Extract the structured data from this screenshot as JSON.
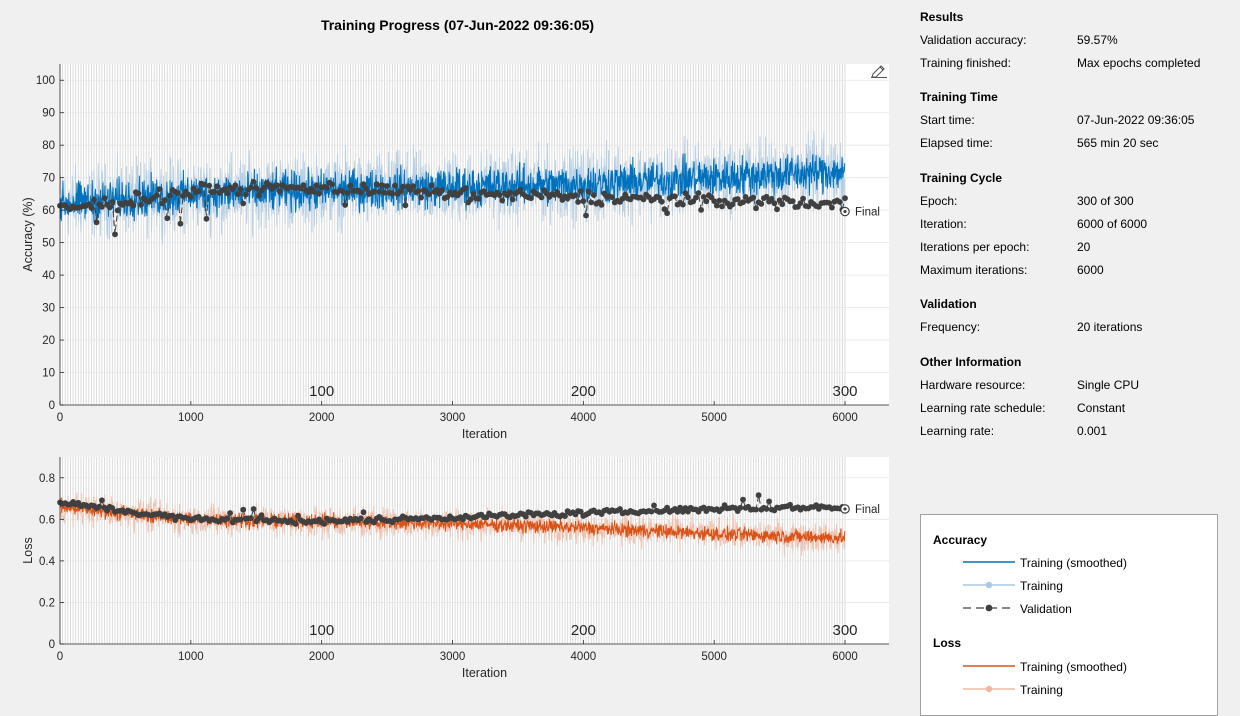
{
  "window": {
    "title": "Training Progress (07-Jun-2022 09:36:05)"
  },
  "icons": {
    "export": "export-pen-icon"
  },
  "colors": {
    "background": "#f0f0f0",
    "accuracy_smoothed": "#0072bd",
    "accuracy_raw": "#a8c8e4",
    "loss_smoothed": "#d95319",
    "loss_raw": "#f0b8a0",
    "validation": "#404040"
  },
  "info": {
    "results": {
      "heading": "Results",
      "rows": [
        {
          "label": "Validation accuracy:",
          "value": "59.57%"
        },
        {
          "label": "Training finished:",
          "value": "Max epochs completed"
        }
      ]
    },
    "training_time": {
      "heading": "Training Time",
      "rows": [
        {
          "label": "Start time:",
          "value": "07-Jun-2022 09:36:05"
        },
        {
          "label": "Elapsed time:",
          "value": "565 min 20 sec"
        }
      ]
    },
    "training_cycle": {
      "heading": "Training Cycle",
      "rows": [
        {
          "label": "Epoch:",
          "value": "300 of 300"
        },
        {
          "label": "Iteration:",
          "value": "6000 of 6000"
        },
        {
          "label": "Iterations per epoch:",
          "value": "20"
        },
        {
          "label": "Maximum iterations:",
          "value": "6000"
        }
      ]
    },
    "validation": {
      "heading": "Validation",
      "rows": [
        {
          "label": "Frequency:",
          "value": "20 iterations"
        }
      ]
    },
    "other": {
      "heading": "Other Information",
      "rows": [
        {
          "label": "Hardware resource:",
          "value": "Single CPU"
        },
        {
          "label": "Learning rate schedule:",
          "value": "Constant"
        },
        {
          "label": "Learning rate:",
          "value": "0.001"
        }
      ]
    }
  },
  "legend": {
    "accuracy_heading": "Accuracy",
    "accuracy_items": [
      "Training (smoothed)",
      "Training",
      "Validation"
    ],
    "loss_heading": "Loss",
    "loss_items": [
      "Training (smoothed)",
      "Training"
    ]
  },
  "chart_data": [
    {
      "type": "line",
      "xlabel": "Iteration",
      "ylabel": "Accuracy (%)",
      "xlim": [
        0,
        6000
      ],
      "ylim": [
        0,
        105
      ],
      "xticks": [
        "0",
        "1000",
        "2000",
        "3000",
        "4000",
        "5000",
        "6000"
      ],
      "yticks": [
        "0",
        "10",
        "20",
        "30",
        "40",
        "50",
        "60",
        "70",
        "80",
        "90",
        "100"
      ],
      "epoch_labels": [
        {
          "epoch": "100",
          "iteration": 2000
        },
        {
          "epoch": "200",
          "iteration": 4000
        },
        {
          "epoch": "300",
          "iteration": 6000
        }
      ],
      "grid": true,
      "final_label": "Final",
      "final_value": 59.57,
      "series": [
        {
          "name": "Training (smoothed)",
          "trend": {
            "x": [
              0,
              1000,
              2000,
              3000,
              4000,
              5000,
              6000
            ],
            "y": [
              62,
              65,
              66,
              67,
              68,
              70,
              72
            ]
          },
          "spread": 9
        },
        {
          "name": "Training",
          "trend": {
            "x": [
              0,
              1000,
              2000,
              3000,
              4000,
              5000,
              6000
            ],
            "y": [
              62,
              65,
              66,
              67,
              68,
              70,
              72
            ]
          },
          "spread": 16
        },
        {
          "name": "Validation",
          "trend": {
            "x": [
              0,
              1000,
              2000,
              3000,
              4000,
              5000,
              6000
            ],
            "y": [
              60,
              66,
              67,
              65,
              64,
              63,
              62
            ]
          },
          "spread": 3,
          "every": 20
        }
      ]
    },
    {
      "type": "line",
      "xlabel": "Iteration",
      "ylabel": "Loss",
      "xlim": [
        0,
        6000
      ],
      "ylim": [
        0,
        0.9
      ],
      "xticks": [
        "0",
        "1000",
        "2000",
        "3000",
        "4000",
        "5000",
        "6000"
      ],
      "yticks": [
        "0",
        "0.2",
        "0.4",
        "0.6",
        "0.8"
      ],
      "epoch_labels": [
        {
          "epoch": "100",
          "iteration": 2000
        },
        {
          "epoch": "200",
          "iteration": 4000
        },
        {
          "epoch": "300",
          "iteration": 6000
        }
      ],
      "grid": true,
      "final_label": "Final",
      "final_value": 0.65,
      "series": [
        {
          "name": "Training (smoothed)",
          "trend": {
            "x": [
              0,
              1000,
              2000,
              3000,
              4000,
              5000,
              6000
            ],
            "y": [
              0.66,
              0.6,
              0.59,
              0.58,
              0.56,
              0.53,
              0.51
            ]
          },
          "spread": 0.05
        },
        {
          "name": "Training",
          "trend": {
            "x": [
              0,
              1000,
              2000,
              3000,
              4000,
              5000,
              6000
            ],
            "y": [
              0.66,
              0.6,
              0.59,
              0.58,
              0.56,
              0.53,
              0.51
            ]
          },
          "spread": 0.11
        },
        {
          "name": "Validation",
          "trend": {
            "x": [
              0,
              1000,
              2000,
              3000,
              4000,
              5000,
              6000
            ],
            "y": [
              0.68,
              0.6,
              0.59,
              0.61,
              0.63,
              0.65,
              0.66
            ]
          },
          "spread": 0.02,
          "every": 20
        }
      ]
    }
  ]
}
